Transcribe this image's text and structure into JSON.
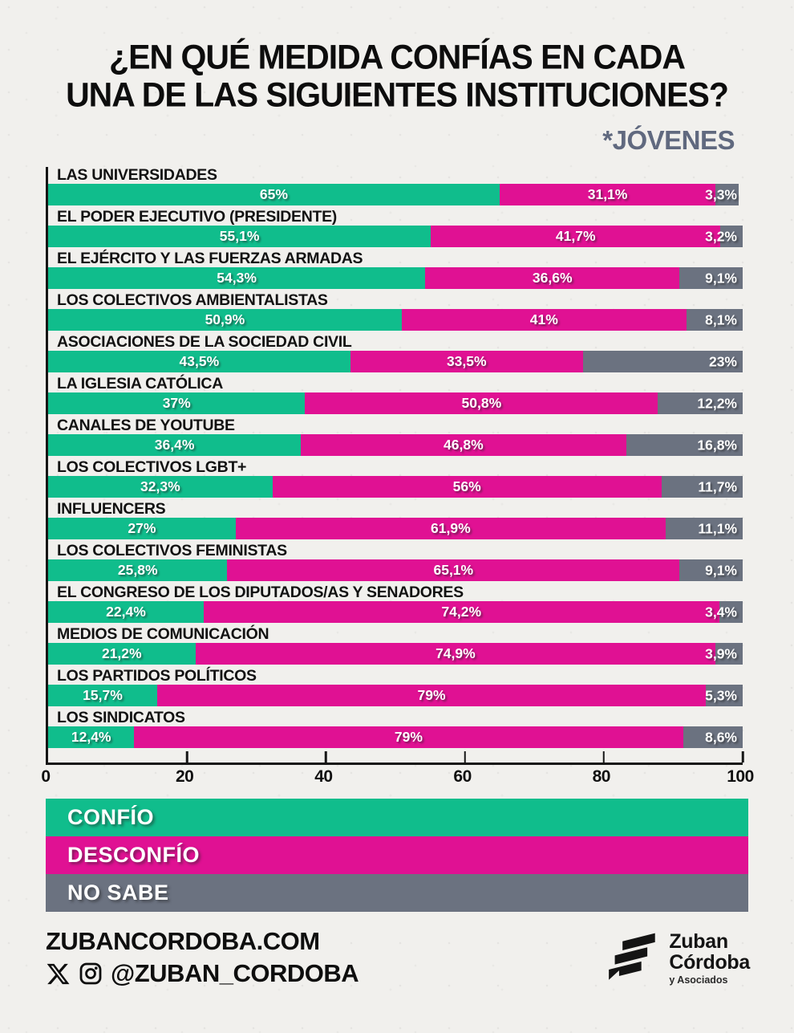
{
  "title": {
    "line1": "¿EN QUÉ MEDIDA CONFÍAS EN CADA",
    "line2": "UNA DE LAS SIGUIENTES INSTITUCIONES?"
  },
  "subtitle": "*JÓVENES",
  "colors": {
    "confio": "#10bd8c",
    "desconfio": "#e01193",
    "no_sabe": "#6b7280",
    "axis": "#161616",
    "subtitle_gray": "#60697f",
    "background": "#f1f0ed"
  },
  "chart_data": {
    "type": "bar",
    "orientation": "horizontal",
    "stacked": true,
    "grid": false,
    "legend_position": "bottom",
    "xlim": [
      0,
      100
    ],
    "x_ticks": [
      "0",
      "20",
      "40",
      "60",
      "80",
      "100"
    ],
    "categories": [
      "LAS UNIVERSIDADES",
      "EL PODER EJECUTIVO (PRESIDENTE)",
      "EL EJÉRCITO Y LAS FUERZAS ARMADAS",
      "LOS COLECTIVOS AMBIENTALISTAS",
      "ASOCIACIONES DE LA SOCIEDAD CIVIL",
      "LA IGLESIA CATÓLICA",
      "CANALES DE YOUTUBE",
      "LOS COLECTIVOS LGBT+",
      "INFLUENCERS",
      "LOS COLECTIVOS FEMINISTAS",
      "EL CONGRESO DE LOS DIPUTADOS/AS Y SENADORES",
      "MEDIOS DE COMUNICACIÓN",
      "LOS PARTIDOS POLÍTICOS",
      "LOS SINDICATOS"
    ],
    "series": [
      {
        "name": "CONFÍO",
        "key": "confio",
        "color": "#10bd8c",
        "values": [
          65,
          55.1,
          54.3,
          50.9,
          43.5,
          37,
          36.4,
          32.3,
          27,
          25.8,
          22.4,
          21.2,
          15.7,
          12.4
        ]
      },
      {
        "name": "DESCONFÍO",
        "key": "desconfio",
        "color": "#e01193",
        "values": [
          31.1,
          41.7,
          36.6,
          41,
          33.5,
          50.8,
          46.8,
          56,
          61.9,
          65.1,
          74.2,
          74.9,
          79,
          79
        ]
      },
      {
        "name": "NO SABE",
        "key": "no-sabe",
        "color": "#6b7280",
        "values": [
          3.3,
          3.2,
          9.1,
          8.1,
          23,
          12.2,
          16.8,
          11.7,
          11.1,
          9.1,
          3.4,
          3.9,
          5.3,
          8.6
        ]
      }
    ],
    "value_labels": [
      [
        "65%",
        "31,1%",
        "3,3%"
      ],
      [
        "55,1%",
        "41,7%",
        "3,2%"
      ],
      [
        "54,3%",
        "36,6%",
        "9,1%"
      ],
      [
        "50,9%",
        "41%",
        "8,1%"
      ],
      [
        "43,5%",
        "33,5%",
        "23%"
      ],
      [
        "37%",
        "50,8%",
        "12,2%"
      ],
      [
        "36,4%",
        "46,8%",
        "16,8%"
      ],
      [
        "32,3%",
        "56%",
        "11,7%"
      ],
      [
        "27%",
        "61,9%",
        "11,1%"
      ],
      [
        "25,8%",
        "65,1%",
        "9,1%"
      ],
      [
        "22,4%",
        "74,2%",
        "3,4%"
      ],
      [
        "21,2%",
        "74,9%",
        "3,9%"
      ],
      [
        "15,7%",
        "79%",
        "5,3%"
      ],
      [
        "12,4%",
        "79%",
        "8,6%"
      ]
    ]
  },
  "legend": {
    "items": [
      {
        "label": "CONFÍO",
        "color": "#10bd8c"
      },
      {
        "label": "DESCONFÍO",
        "color": "#e01193"
      },
      {
        "label": "NO SABE",
        "color": "#6b7280"
      }
    ]
  },
  "footer": {
    "website": "ZUBANCORDOBA.COM",
    "social_handle": "@ZUBAN_CORDOBA",
    "logo": {
      "line1": "Zuban",
      "line2": "Córdoba",
      "line3": "y Asociados"
    }
  }
}
